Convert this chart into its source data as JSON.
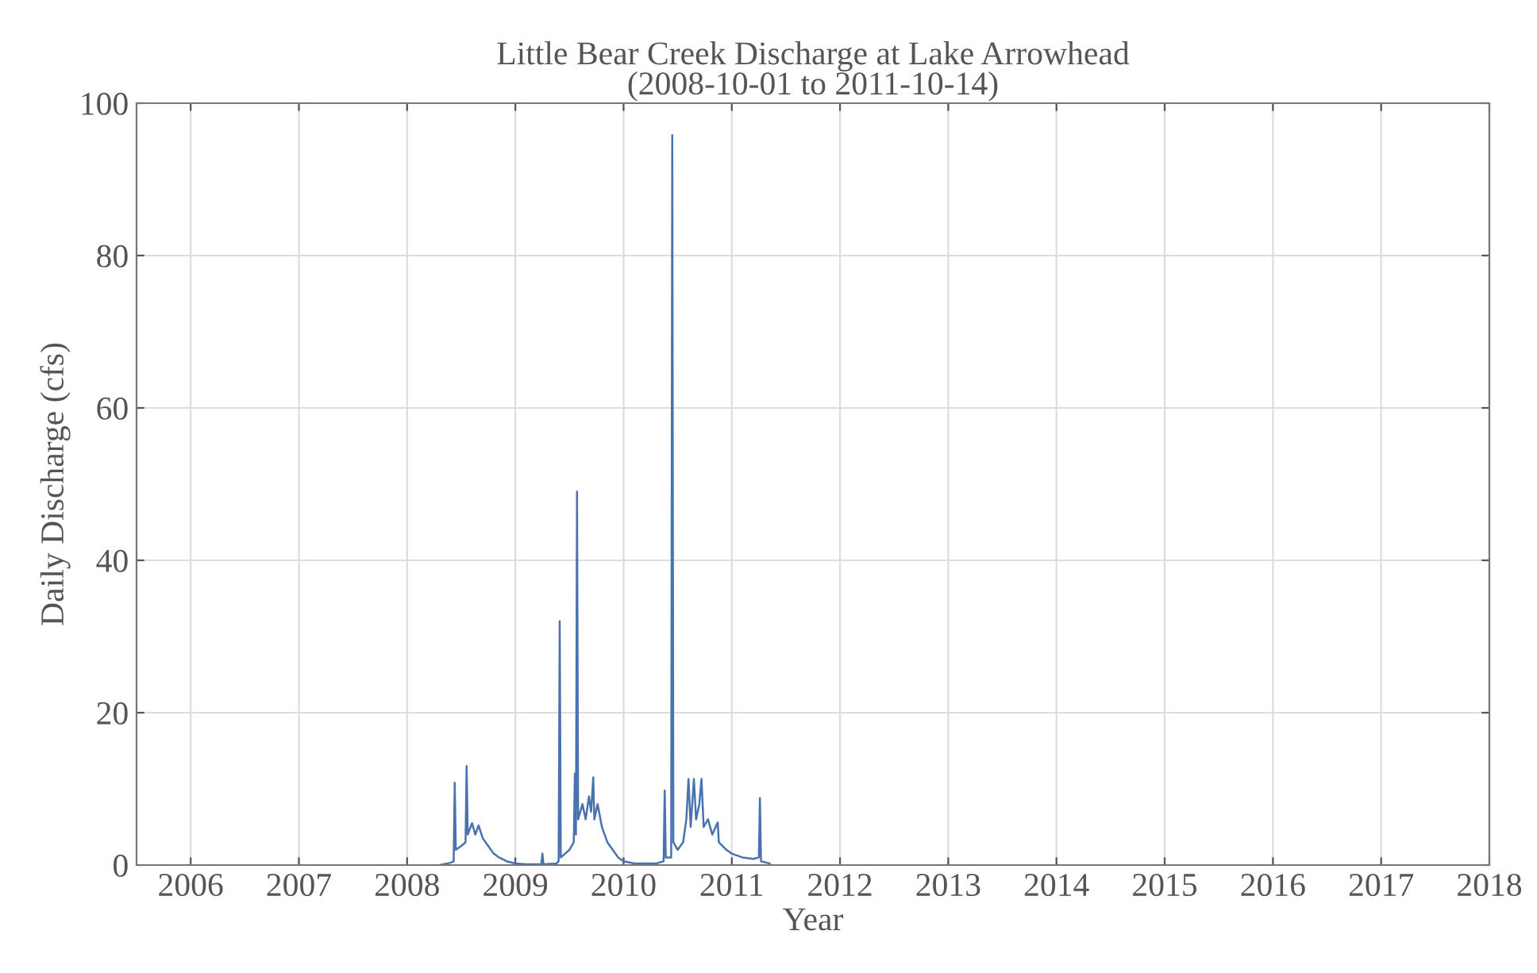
{
  "chart_data": {
    "type": "line",
    "title": "Little Bear Creek Discharge at Lake Arrowhead",
    "subtitle": "(2008-10-01 to 2011-10-14)",
    "xlabel": "Year",
    "ylabel": "Daily Discharge (cfs)",
    "xlim": [
      2005.5,
      2018
    ],
    "xticks": [
      2006,
      2007,
      2008,
      2009,
      2010,
      2011,
      2012,
      2013,
      2014,
      2015,
      2016,
      2017,
      2018
    ],
    "ylim": [
      0,
      100
    ],
    "yticks": [
      0,
      20,
      40,
      60,
      80,
      100
    ],
    "grid": true,
    "line_style": "solid",
    "marker": "none",
    "series": [
      {
        "color": "#4a72b0",
        "x": [
          2008.3,
          2008.4,
          2008.43,
          2008.44,
          2008.45,
          2008.5,
          2008.54,
          2008.55,
          2008.56,
          2008.6,
          2008.63,
          2008.66,
          2008.7,
          2008.75,
          2008.8,
          2008.85,
          2008.92,
          2009.0,
          2009.1,
          2009.24,
          2009.25,
          2009.26,
          2009.38,
          2009.4,
          2009.41,
          2009.42,
          2009.5,
          2009.54,
          2009.55,
          2009.56,
          2009.57,
          2009.58,
          2009.62,
          2009.65,
          2009.68,
          2009.7,
          2009.72,
          2009.73,
          2009.76,
          2009.8,
          2009.85,
          2009.9,
          2009.95,
          2010.0,
          2010.1,
          2010.3,
          2010.37,
          2010.38,
          2010.39,
          2010.44,
          2010.45,
          2010.46,
          2010.5,
          2010.55,
          2010.58,
          2010.6,
          2010.62,
          2010.65,
          2010.67,
          2010.7,
          2010.72,
          2010.74,
          2010.78,
          2010.82,
          2010.87,
          2010.88,
          2010.95,
          2011.0,
          2011.1,
          2011.2,
          2011.25,
          2011.26,
          2011.27,
          2011.35
        ],
        "values": [
          0,
          0.3,
          0.5,
          10.8,
          2,
          2.5,
          3,
          13.0,
          4,
          5.5,
          4,
          5.2,
          3.5,
          2.5,
          1.5,
          1,
          0.5,
          0.2,
          0.1,
          0.1,
          1.5,
          0.1,
          0.2,
          0.5,
          32.0,
          1,
          2,
          3,
          12,
          4,
          49,
          6,
          8,
          6,
          9,
          7,
          11.5,
          6,
          8,
          5,
          3,
          2,
          1,
          0.5,
          0.2,
          0.2,
          0.5,
          9.8,
          1,
          1,
          95.8,
          3,
          2,
          3,
          6,
          11.3,
          5,
          11.3,
          6,
          8,
          11.3,
          5,
          6,
          4,
          5.6,
          3,
          2,
          1.5,
          1,
          0.8,
          1,
          8.8,
          0.5,
          0.2
        ]
      }
    ]
  }
}
